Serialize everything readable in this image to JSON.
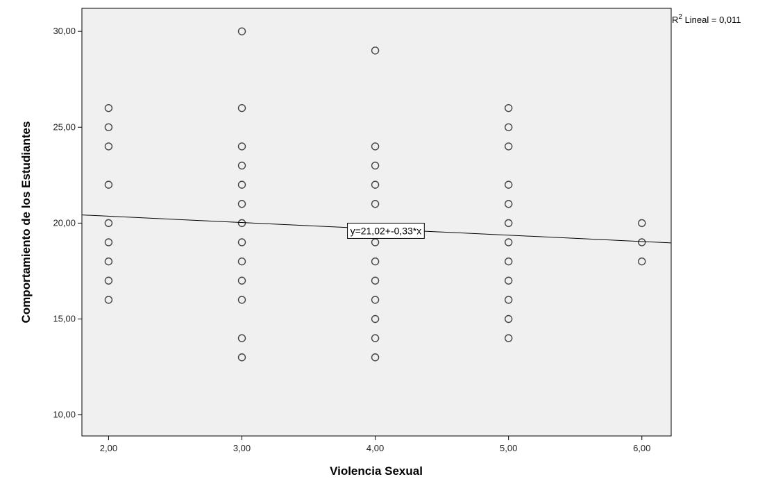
{
  "chart_data": {
    "type": "scatter",
    "xlabel": "Violencia Sexual",
    "ylabel": "Comportamiento de los Estudiantes",
    "xlim": [
      1.8,
      6.22
    ],
    "ylim": [
      8.9,
      31.2
    ],
    "x_ticks": [
      2,
      3,
      4,
      5,
      6
    ],
    "y_ticks": [
      10,
      15,
      20,
      25,
      30
    ],
    "x_tick_labels": [
      "2,00",
      "3,00",
      "4,00",
      "5,00",
      "6,00"
    ],
    "y_tick_labels": [
      "10,00",
      "15,00",
      "20,00",
      "25,00",
      "30,00"
    ],
    "grid": false,
    "plot_background": "#f0f0f0",
    "marker_color": "#444444",
    "points": [
      {
        "x": 2,
        "y": 26
      },
      {
        "x": 2,
        "y": 25
      },
      {
        "x": 2,
        "y": 24
      },
      {
        "x": 2,
        "y": 22
      },
      {
        "x": 2,
        "y": 20
      },
      {
        "x": 2,
        "y": 19
      },
      {
        "x": 2,
        "y": 18
      },
      {
        "x": 2,
        "y": 17
      },
      {
        "x": 2,
        "y": 16
      },
      {
        "x": 3,
        "y": 30
      },
      {
        "x": 3,
        "y": 26
      },
      {
        "x": 3,
        "y": 24
      },
      {
        "x": 3,
        "y": 23
      },
      {
        "x": 3,
        "y": 22
      },
      {
        "x": 3,
        "y": 21
      },
      {
        "x": 3,
        "y": 20
      },
      {
        "x": 3,
        "y": 19
      },
      {
        "x": 3,
        "y": 18
      },
      {
        "x": 3,
        "y": 17
      },
      {
        "x": 3,
        "y": 16
      },
      {
        "x": 3,
        "y": 14
      },
      {
        "x": 3,
        "y": 13
      },
      {
        "x": 4,
        "y": 29
      },
      {
        "x": 4,
        "y": 24
      },
      {
        "x": 4,
        "y": 23
      },
      {
        "x": 4,
        "y": 22
      },
      {
        "x": 4,
        "y": 21
      },
      {
        "x": 4,
        "y": 19
      },
      {
        "x": 4,
        "y": 18
      },
      {
        "x": 4,
        "y": 17
      },
      {
        "x": 4,
        "y": 16
      },
      {
        "x": 4,
        "y": 15
      },
      {
        "x": 4,
        "y": 14
      },
      {
        "x": 4,
        "y": 13
      },
      {
        "x": 5,
        "y": 26
      },
      {
        "x": 5,
        "y": 25
      },
      {
        "x": 5,
        "y": 24
      },
      {
        "x": 5,
        "y": 22
      },
      {
        "x": 5,
        "y": 21
      },
      {
        "x": 5,
        "y": 20
      },
      {
        "x": 5,
        "y": 19
      },
      {
        "x": 5,
        "y": 18
      },
      {
        "x": 5,
        "y": 17
      },
      {
        "x": 5,
        "y": 16
      },
      {
        "x": 5,
        "y": 15
      },
      {
        "x": 5,
        "y": 14
      },
      {
        "x": 6,
        "y": 20
      },
      {
        "x": 6,
        "y": 19
      },
      {
        "x": 6,
        "y": 18
      }
    ],
    "regression": {
      "intercept": 21.02,
      "slope": -0.33
    },
    "equation_label": "y=21,02+-0,33*x",
    "equation_at": {
      "x": 4.08,
      "y": 19.6
    },
    "r2_prefix": "R",
    "r2_superscript": "2",
    "r2_text": " Lineal = 0,011"
  }
}
